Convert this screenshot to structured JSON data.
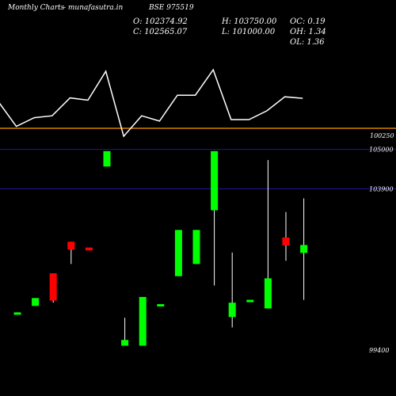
{
  "header": {
    "left": "Monthly Charts",
    "site": "- munafasutra.in",
    "symbol": "BSE 975519"
  },
  "ohlc": {
    "open": "O: 102374.92",
    "high": "H: 103750.00",
    "oc": "OC: 0.19",
    "close": "C: 102565.07",
    "low": "L: 101000.00",
    "oh": "OH: 1.34",
    "ol": "OL: 1.36"
  },
  "chart_data": {
    "type": "candlestick",
    "indicator_panel": {
      "reference_label": "100250",
      "line_values": [
        7.0,
        0.5,
        2.8,
        3.3,
        8.0,
        7.4,
        15.0,
        -2.1,
        3.3,
        1.9,
        8.7,
        8.7,
        15.4,
        2.3,
        2.3,
        4.6,
        8.3,
        7.9
      ]
    },
    "price_panel": {
      "ticks": [
        {
          "value": 105000,
          "label": "105000",
          "line": true
        },
        {
          "value": 103900,
          "label": "103900",
          "line": true
        },
        {
          "value": 99400,
          "label": "99400",
          "line": false
        }
      ],
      "ylim": [
        99000,
        105300
      ],
      "candles": [
        {
          "o": 100450,
          "h": 100450,
          "l": 100400,
          "c": 100400,
          "up": true
        },
        {
          "o": 100630,
          "h": 100850,
          "l": 100630,
          "c": 100850,
          "up": true
        },
        {
          "o": 101540,
          "h": 101540,
          "l": 100720,
          "c": 100780,
          "up": false
        },
        {
          "o": 102420,
          "h": 102420,
          "l": 101800,
          "c": 102200,
          "up": false
        },
        {
          "o": 102260,
          "h": 102260,
          "l": 102180,
          "c": 102180,
          "up": false
        },
        {
          "o": 104520,
          "h": 104950,
          "l": 104520,
          "c": 104950,
          "up": true
        },
        {
          "o": 99520,
          "h": 100300,
          "l": 99520,
          "c": 99680,
          "up": true
        },
        {
          "o": 99520,
          "h": 100880,
          "l": 99520,
          "c": 100880,
          "up": true
        },
        {
          "o": 100680,
          "h": 100680,
          "l": 100620,
          "c": 100620,
          "up": true
        },
        {
          "o": 101460,
          "h": 102750,
          "l": 101460,
          "c": 102750,
          "up": true
        },
        {
          "o": 101800,
          "h": 102750,
          "l": 101800,
          "c": 102750,
          "up": true
        },
        {
          "o": 104950,
          "h": 104950,
          "l": 101200,
          "c": 103300,
          "up": true
        },
        {
          "o": 100320,
          "h": 102120,
          "l": 100030,
          "c": 100720,
          "up": true
        },
        {
          "o": 100800,
          "h": 100800,
          "l": 100760,
          "c": 100760,
          "up": true
        },
        {
          "o": 100560,
          "h": 104700,
          "l": 100560,
          "c": 101400,
          "up": true
        },
        {
          "o": 102540,
          "h": 103250,
          "l": 101890,
          "c": 102320,
          "up": false
        },
        {
          "o": 102330,
          "h": 103630,
          "l": 100800,
          "c": 102110,
          "up": true
        }
      ]
    }
  }
}
